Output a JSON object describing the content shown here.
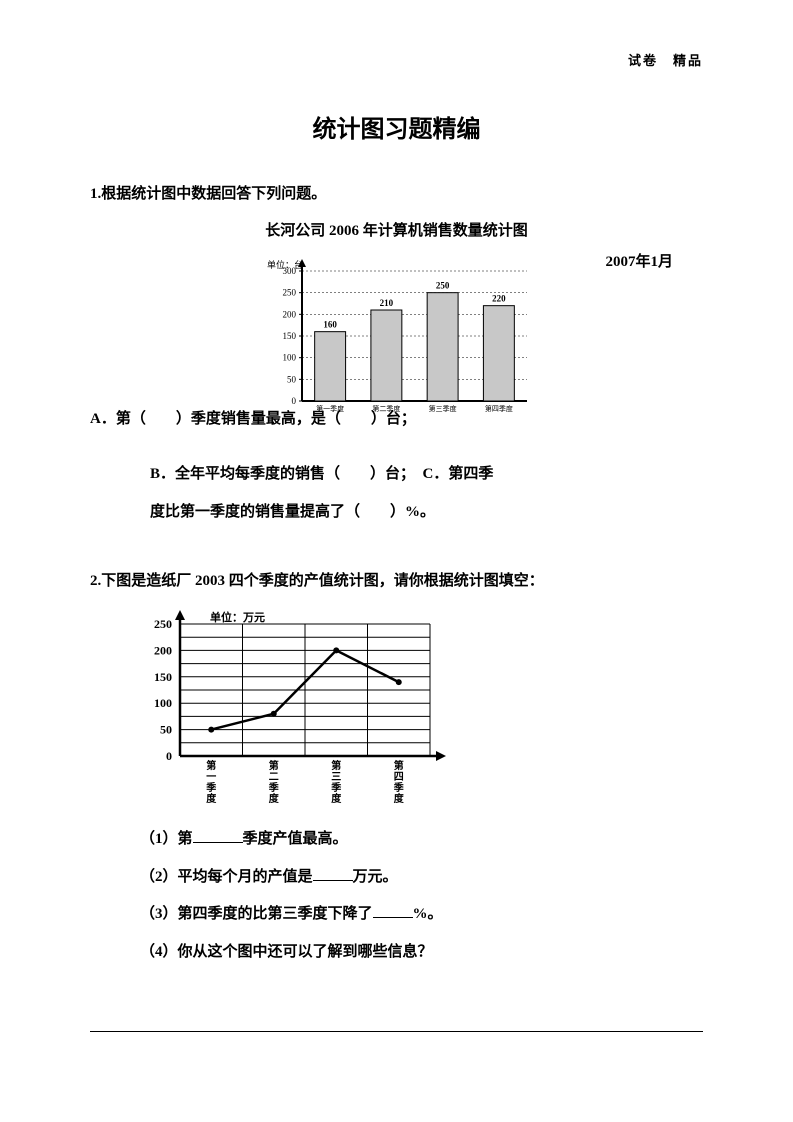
{
  "header": {
    "right": "试卷　精品"
  },
  "title": "统计图习题精编",
  "q1": {
    "prompt": "1.根据统计图中数据回答下列问题。",
    "chart_title": "长河公司 2006 年计算机销售数量统计图",
    "date": "2007年1月",
    "ylabel": "单位：台",
    "ymax": 300,
    "yticks": [
      0,
      50,
      100,
      150,
      200,
      250,
      300
    ],
    "categories": [
      "第一季度",
      "第二季度",
      "第三季度",
      "第四季度"
    ],
    "values": [
      160,
      210,
      250,
      220
    ],
    "bar_fill": "#c8c8c8",
    "bar_stroke": "#000000",
    "optA_1": "A．第（　　）季度销售量最高，是（　　）台；",
    "optB": "B．全年平均每季度的销售（　　）台；　C．第四季",
    "optB2": "度比第一季度的销售量提高了（　　）%。"
  },
  "q2": {
    "prompt": "2.下图是造纸厂 2003 四个季度的产值统计图，请你根据统计图填空：",
    "ylabel": "单位：万元",
    "ymax": 250,
    "yticks": [
      0,
      50,
      100,
      150,
      200,
      250
    ],
    "categories": [
      "第一季度",
      "第二季度",
      "第三季度",
      "第四季度"
    ],
    "values": [
      50,
      80,
      200,
      140
    ],
    "line_color": "#000000",
    "grid_color": "#000000",
    "sub1a": "（1）第",
    "sub1b": "季度产值最高。",
    "sub2a": "（2）平均每个月的产值是",
    "sub2b": "万元。",
    "sub3a": "（3）第四季度的比第三季度下降了",
    "sub3b": "%。",
    "sub4": "（4）你从这个图中还可以了解到哪些信息？"
  }
}
